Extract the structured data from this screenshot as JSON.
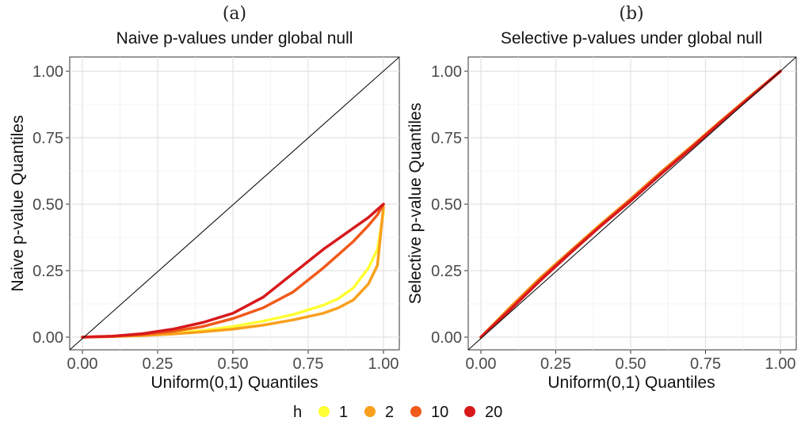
{
  "chart_data": [
    {
      "type": "line",
      "panel_tag": "(a)",
      "title": "Naive p-values under global null",
      "xlabel": "Uniform(0,1) Quantiles",
      "ylabel": "Naive p-value Quantiles",
      "xlim": [
        0,
        1
      ],
      "ylim": [
        0,
        1
      ],
      "xticks": [
        "0.00",
        "0.25",
        "0.50",
        "0.75",
        "1.00"
      ],
      "yticks": [
        "0.00",
        "0.25",
        "0.50",
        "0.75",
        "1.00"
      ],
      "grid": true,
      "reference_line": "y = x",
      "x": [
        0,
        0.1,
        0.2,
        0.3,
        0.4,
        0.5,
        0.6,
        0.7,
        0.8,
        0.85,
        0.9,
        0.95,
        0.98,
        1.0
      ],
      "series": [
        {
          "name": "1",
          "color": "#ffff33",
          "values": [
            0,
            0.003,
            0.008,
            0.015,
            0.025,
            0.04,
            0.06,
            0.085,
            0.12,
            0.145,
            0.185,
            0.26,
            0.33,
            0.47
          ]
        },
        {
          "name": "2",
          "color": "#f8a01c",
          "values": [
            0,
            0.002,
            0.006,
            0.012,
            0.02,
            0.03,
            0.045,
            0.065,
            0.09,
            0.11,
            0.14,
            0.2,
            0.27,
            0.49
          ]
        },
        {
          "name": "10",
          "color": "#f05a1a",
          "values": [
            0,
            0.003,
            0.01,
            0.022,
            0.04,
            0.07,
            0.11,
            0.17,
            0.26,
            0.31,
            0.36,
            0.42,
            0.46,
            0.5
          ]
        },
        {
          "name": "20",
          "color": "#d7191c",
          "values": [
            0,
            0.004,
            0.013,
            0.03,
            0.055,
            0.09,
            0.15,
            0.24,
            0.33,
            0.37,
            0.41,
            0.45,
            0.48,
            0.5
          ]
        }
      ]
    },
    {
      "type": "line",
      "panel_tag": "(b)",
      "title": "Selective p-values under global null",
      "xlabel": "Uniform(0,1) Quantiles",
      "ylabel": "Selective p-value Quantiles",
      "xlim": [
        0,
        1
      ],
      "ylim": [
        0,
        1
      ],
      "xticks": [
        "0.00",
        "0.25",
        "0.50",
        "0.75",
        "1.00"
      ],
      "yticks": [
        "0.00",
        "0.25",
        "0.50",
        "0.75",
        "1.00"
      ],
      "grid": true,
      "reference_line": "y = x",
      "x": [
        0,
        0.1,
        0.2,
        0.3,
        0.4,
        0.5,
        0.6,
        0.7,
        0.8,
        0.9,
        1.0
      ],
      "series": [
        {
          "name": "1",
          "color": "#ffff33",
          "values": [
            0,
            0.11,
            0.22,
            0.32,
            0.42,
            0.515,
            0.615,
            0.71,
            0.81,
            0.905,
            1.0
          ]
        },
        {
          "name": "2",
          "color": "#f8a01c",
          "values": [
            0,
            0.115,
            0.225,
            0.325,
            0.425,
            0.52,
            0.62,
            0.715,
            0.812,
            0.907,
            1.0
          ]
        },
        {
          "name": "10",
          "color": "#f05a1a",
          "values": [
            0,
            0.11,
            0.22,
            0.322,
            0.42,
            0.517,
            0.617,
            0.712,
            0.81,
            0.905,
            1.0
          ]
        },
        {
          "name": "20",
          "color": "#d7191c",
          "values": [
            0,
            0.105,
            0.215,
            0.318,
            0.418,
            0.512,
            0.612,
            0.708,
            0.807,
            0.903,
            1.0
          ]
        }
      ]
    }
  ],
  "legend": {
    "title": "h",
    "position": "bottom",
    "items": [
      {
        "label": "1",
        "color": "#ffff33"
      },
      {
        "label": "2",
        "color": "#f8a01c"
      },
      {
        "label": "10",
        "color": "#f05a1a"
      },
      {
        "label": "20",
        "color": "#d7191c"
      }
    ]
  }
}
